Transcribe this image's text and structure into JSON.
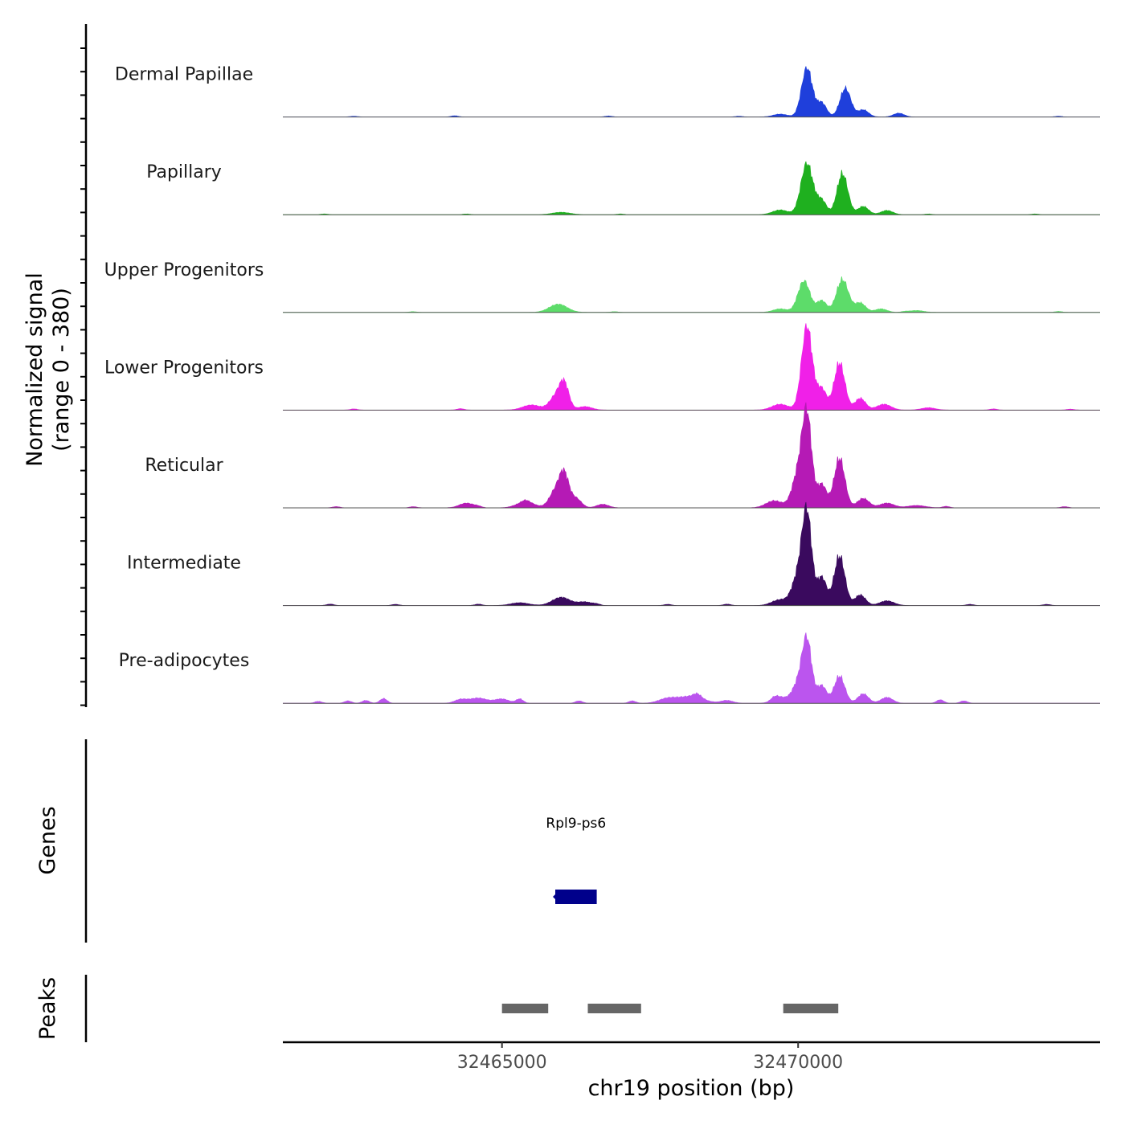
{
  "chart_data": {
    "type": "area",
    "title": "",
    "ylabel_lines": [
      "Normalized signal",
      "(range 0 - 380)"
    ],
    "y_range": [
      0,
      380
    ],
    "xlabel": "chr19 position (bp)",
    "x_range": [
      32461300,
      32475100
    ],
    "x_ticks": [
      {
        "value": 32465000,
        "label": "32465000"
      },
      {
        "value": 32470000,
        "label": "32470000"
      }
    ],
    "tracks": [
      {
        "name": "Dermal Papillae",
        "color": "#1f3fdb",
        "baseline_features": [
          [
            32462500,
            3
          ],
          [
            32464200,
            5
          ],
          [
            32466800,
            4
          ],
          [
            32469000,
            3
          ],
          [
            32474400,
            3
          ]
        ],
        "peaks": [
          [
            32469700,
            12,
            120
          ],
          [
            32470150,
            210,
            90
          ],
          [
            32470400,
            60,
            80
          ],
          [
            32470800,
            122,
            90
          ],
          [
            32471100,
            30,
            90
          ],
          [
            32471700,
            16,
            90
          ]
        ]
      },
      {
        "name": "Papillary",
        "color": "#1fb01f",
        "baseline_features": [
          [
            32462000,
            3
          ],
          [
            32464400,
            3
          ],
          [
            32467000,
            3
          ],
          [
            32472200,
            3
          ],
          [
            32474000,
            3
          ]
        ],
        "peaks": [
          [
            32466000,
            10,
            150
          ],
          [
            32469700,
            20,
            130
          ],
          [
            32470150,
            220,
            100
          ],
          [
            32470400,
            60,
            80
          ],
          [
            32470750,
            175,
            90
          ],
          [
            32471100,
            35,
            90
          ],
          [
            32471500,
            18,
            100
          ]
        ]
      },
      {
        "name": "Upper Progenitors",
        "color": "#5ddc6a",
        "baseline_features": [
          [
            32463500,
            3
          ],
          [
            32466900,
            3
          ],
          [
            32471800,
            3
          ],
          [
            32474400,
            4
          ]
        ],
        "peaks": [
          [
            32465950,
            35,
            150
          ],
          [
            32469700,
            15,
            120
          ],
          [
            32470100,
            135,
            100
          ],
          [
            32470400,
            50,
            80
          ],
          [
            32470750,
            140,
            100
          ],
          [
            32471050,
            40,
            90
          ],
          [
            32471400,
            15,
            100
          ],
          [
            32472000,
            8,
            120
          ]
        ]
      },
      {
        "name": "Lower Progenitors",
        "color": "#f020e8",
        "baseline_features": [
          [
            32462500,
            5
          ],
          [
            32464300,
            6
          ],
          [
            32473300,
            5
          ],
          [
            32474600,
            4
          ]
        ],
        "peaks": [
          [
            32465500,
            22,
            150
          ],
          [
            32465900,
            55,
            100
          ],
          [
            32466050,
            110,
            80
          ],
          [
            32466400,
            15,
            120
          ],
          [
            32469700,
            25,
            140
          ],
          [
            32470150,
            360,
            90
          ],
          [
            32470400,
            90,
            80
          ],
          [
            32470700,
            200,
            90
          ],
          [
            32471050,
            50,
            90
          ],
          [
            32471450,
            25,
            120
          ],
          [
            32472200,
            10,
            120
          ]
        ]
      },
      {
        "name": "Reticular",
        "color": "#b51ab5",
        "baseline_features": [
          [
            32462200,
            5
          ],
          [
            32463500,
            5
          ],
          [
            32464600,
            5
          ],
          [
            32465400,
            8
          ],
          [
            32472500,
            6
          ],
          [
            32474500,
            5
          ]
        ],
        "peaks": [
          [
            32464400,
            20,
            120
          ],
          [
            32465400,
            25,
            150
          ],
          [
            32465900,
            70,
            100
          ],
          [
            32466050,
            135,
            80
          ],
          [
            32466250,
            40,
            90
          ],
          [
            32466700,
            15,
            100
          ],
          [
            32469600,
            30,
            140
          ],
          [
            32470000,
            140,
            100
          ],
          [
            32470150,
            380,
            80
          ],
          [
            32470400,
            100,
            80
          ],
          [
            32470700,
            210,
            90
          ],
          [
            32471100,
            40,
            100
          ],
          [
            32471500,
            20,
            120
          ],
          [
            32472000,
            10,
            150
          ]
        ]
      },
      {
        "name": "Intermediate",
        "color": "#3a0a5e",
        "baseline_features": [
          [
            32462100,
            6
          ],
          [
            32463200,
            5
          ],
          [
            32464600,
            6
          ],
          [
            32466600,
            5
          ],
          [
            32467800,
            5
          ],
          [
            32468800,
            6
          ],
          [
            32472900,
            5
          ],
          [
            32474200,
            5
          ]
        ],
        "peaks": [
          [
            32465300,
            12,
            150
          ],
          [
            32466000,
            35,
            150
          ],
          [
            32466400,
            15,
            120
          ],
          [
            32469700,
            25,
            140
          ],
          [
            32470000,
            120,
            100
          ],
          [
            32470150,
            380,
            80
          ],
          [
            32470400,
            120,
            80
          ],
          [
            32470700,
            210,
            90
          ],
          [
            32471050,
            45,
            90
          ],
          [
            32471500,
            20,
            120
          ]
        ]
      },
      {
        "name": "Pre-adipocytes",
        "color": "#bb55ee",
        "baseline_features": [
          [
            32461900,
            8
          ],
          [
            32462400,
            10
          ],
          [
            32462700,
            12
          ],
          [
            32463000,
            20
          ],
          [
            32465300,
            18
          ],
          [
            32466300,
            10
          ],
          [
            32467200,
            10
          ],
          [
            32468300,
            15
          ],
          [
            32469600,
            12
          ],
          [
            32472400,
            15
          ],
          [
            32472800,
            10
          ]
        ],
        "peaks": [
          [
            32464300,
            15,
            100
          ],
          [
            32464600,
            22,
            150
          ],
          [
            32465000,
            18,
            120
          ],
          [
            32467800,
            20,
            150
          ],
          [
            32468200,
            30,
            200
          ],
          [
            32468800,
            12,
            100
          ],
          [
            32469700,
            25,
            120
          ],
          [
            32470000,
            80,
            100
          ],
          [
            32470150,
            260,
            80
          ],
          [
            32470400,
            75,
            80
          ],
          [
            32470700,
            115,
            90
          ],
          [
            32471100,
            40,
            90
          ],
          [
            32471500,
            25,
            100
          ]
        ]
      }
    ],
    "genes_track": {
      "label": "Genes",
      "genes": [
        {
          "name": "Rpl9-ps6",
          "start": 32465900,
          "end": 32466600,
          "strand": "-",
          "color": "#00008b"
        }
      ]
    },
    "peaks_track": {
      "label": "Peaks",
      "color": "#666666",
      "regions": [
        [
          32465000,
          32465780
        ],
        [
          32466450,
          32467350
        ],
        [
          32469750,
          32470680
        ]
      ]
    }
  }
}
